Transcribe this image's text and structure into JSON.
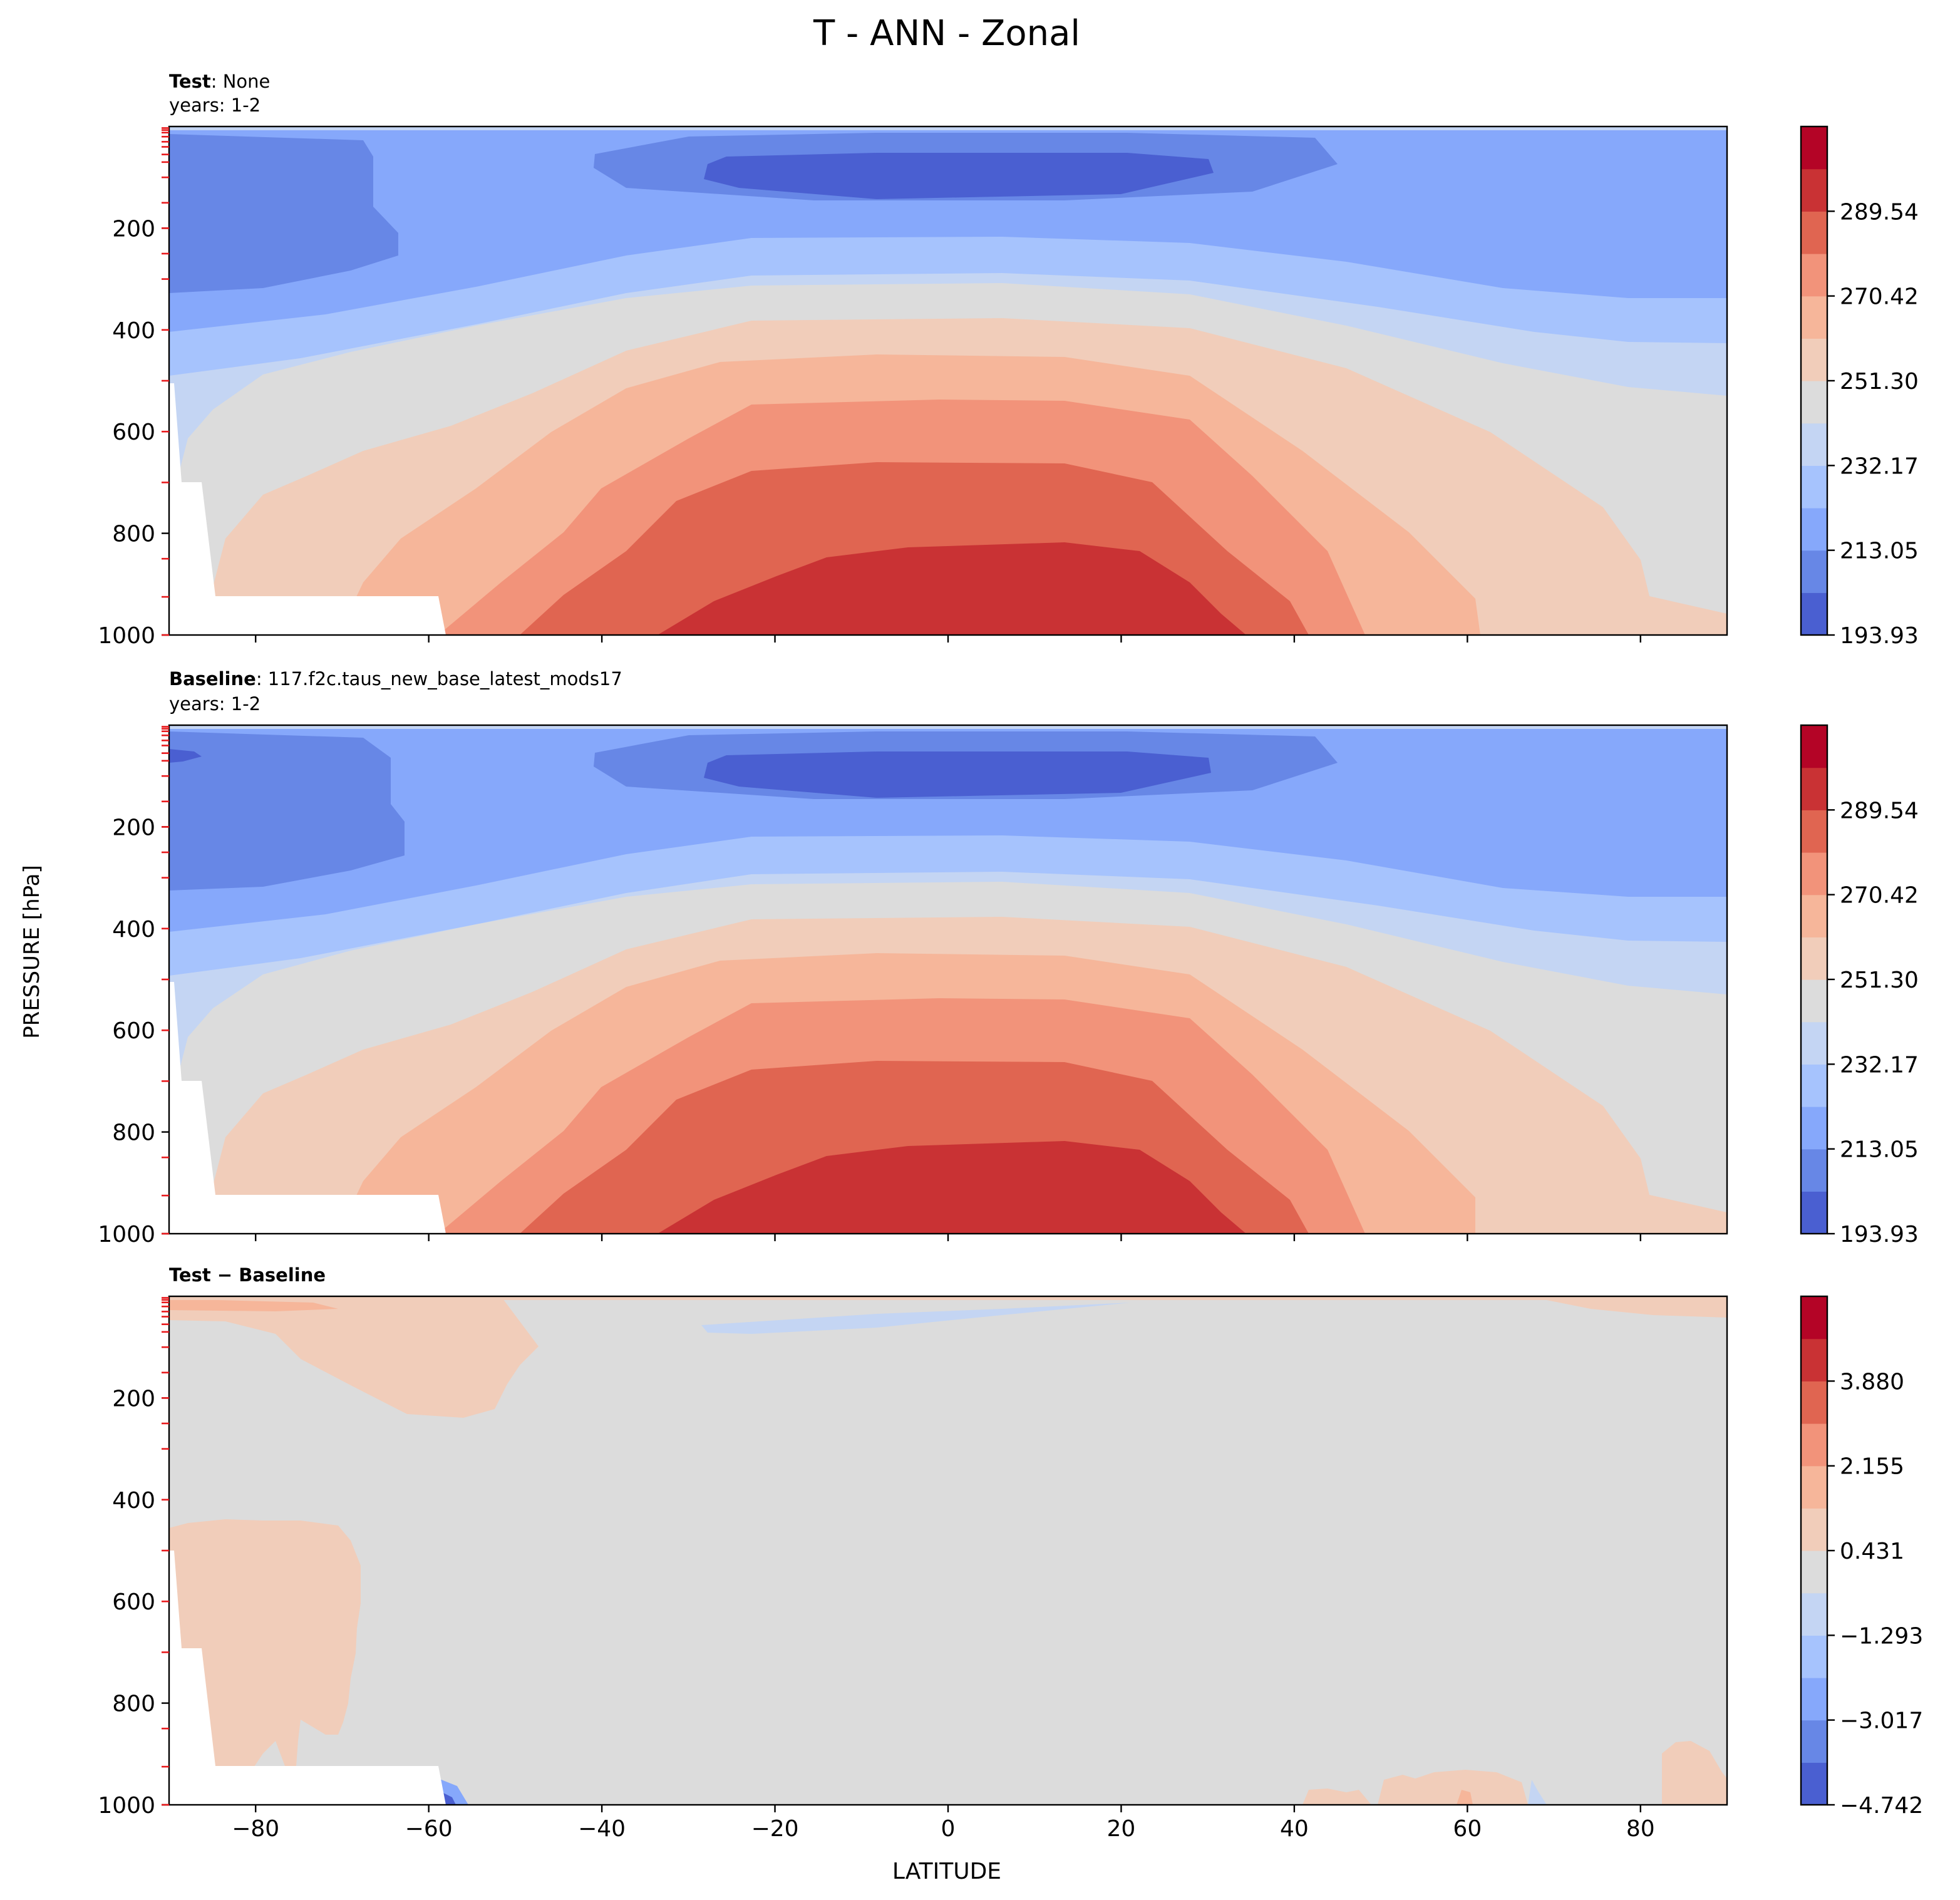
{
  "figure": {
    "title": "T - ANN - Zonal",
    "ylabel": "PRESSURE [hPa]",
    "xlabel": "LATITUDE"
  },
  "chart_data": [
    {
      "type": "heatmap",
      "panel": "test",
      "label_bold": "Test",
      "label_rest": ": None",
      "subtitle": "years: 1-2",
      "x": {
        "range": [
          -90,
          90
        ],
        "ticks": [
          -80,
          -60,
          -40,
          -20,
          0,
          20,
          40,
          60,
          80
        ],
        "tick_labels_shown": false
      },
      "y": {
        "range": [
          1000,
          0
        ],
        "ticks": [
          200,
          400,
          600,
          800,
          1000
        ],
        "tick_labels": [
          "200",
          "400",
          "600",
          "800",
          "1000"
        ]
      },
      "model_levels_hpa": [
        3,
        7,
        12,
        20,
        30,
        40,
        55,
        70,
        100,
        150,
        200,
        250,
        300,
        400,
        500,
        600,
        700,
        850,
        925,
        1000
      ],
      "colorbar": {
        "min": 193.93,
        "max": 308.66,
        "n_levels": 12,
        "tick_values": [
          193.93,
          213.05,
          232.17,
          251.3,
          270.42,
          289.54
        ],
        "tick_labels": [
          "193.93",
          "213.05",
          "232.17",
          "251.30",
          "270.42",
          "289.54"
        ]
      },
      "colors": [
        "#4a5fd1",
        "#6787e6",
        "#86a8fb",
        "#a6c3fd",
        "#c4d5f3",
        "#dcdcdc",
        "#f1cdba",
        "#f6b69a",
        "#f2937a",
        "#e06551",
        "#c93234",
        "#b40426"
      ]
    },
    {
      "type": "heatmap",
      "panel": "baseline",
      "label_bold": "Baseline",
      "label_rest": ": 117.f2c.taus_new_base_latest_mods17",
      "subtitle": "years: 1-2",
      "x": {
        "range": [
          -90,
          90
        ],
        "ticks": [
          -80,
          -60,
          -40,
          -20,
          0,
          20,
          40,
          60,
          80
        ],
        "tick_labels_shown": false
      },
      "y": {
        "range": [
          1000,
          0
        ],
        "ticks": [
          200,
          400,
          600,
          800,
          1000
        ],
        "tick_labels": [
          "200",
          "400",
          "600",
          "800",
          "1000"
        ]
      },
      "model_levels_hpa": [
        3,
        7,
        12,
        20,
        30,
        40,
        55,
        70,
        100,
        150,
        200,
        250,
        300,
        400,
        500,
        600,
        700,
        850,
        925,
        1000
      ],
      "colorbar": {
        "min": 193.93,
        "max": 308.66,
        "n_levels": 12,
        "tick_values": [
          193.93,
          213.05,
          232.17,
          251.3,
          270.42,
          289.54
        ],
        "tick_labels": [
          "193.93",
          "213.05",
          "232.17",
          "251.30",
          "270.42",
          "289.54"
        ]
      },
      "colors": [
        "#4a5fd1",
        "#6787e6",
        "#86a8fb",
        "#a6c3fd",
        "#c4d5f3",
        "#dcdcdc",
        "#f1cdba",
        "#f6b69a",
        "#f2937a",
        "#e06551",
        "#c93234",
        "#b40426"
      ]
    },
    {
      "type": "heatmap",
      "panel": "diff",
      "label_bold": "Test − Baseline",
      "label_rest": "",
      "subtitle": "",
      "x": {
        "range": [
          -90,
          90
        ],
        "ticks": [
          -80,
          -60,
          -40,
          -20,
          0,
          20,
          40,
          60,
          80
        ],
        "tick_labels": [
          "−80",
          "−60",
          "−40",
          "−20",
          "0",
          "20",
          "40",
          "60",
          "80"
        ]
      },
      "y": {
        "range": [
          1000,
          0
        ],
        "ticks": [
          200,
          400,
          600,
          800,
          1000
        ],
        "tick_labels": [
          "200",
          "400",
          "600",
          "800",
          "1000"
        ]
      },
      "model_levels_hpa": [
        3,
        7,
        12,
        20,
        30,
        40,
        55,
        70,
        100,
        150,
        200,
        250,
        300,
        400,
        500,
        600,
        700,
        850,
        925,
        1000
      ],
      "colorbar": {
        "min": -4.742,
        "max": 5.605,
        "n_levels": 12,
        "tick_values": [
          -4.742,
          -3.017,
          -1.293,
          0.431,
          2.155,
          3.88
        ],
        "tick_labels": [
          "−4.742",
          "−3.017",
          "−1.293",
          "0.431",
          "2.155",
          "3.880"
        ]
      },
      "colors": [
        "#4a5fd1",
        "#6787e6",
        "#86a8fb",
        "#a6c3fd",
        "#c4d5f3",
        "#dcdcdc",
        "#f1cdba",
        "#f6b69a",
        "#f2937a",
        "#e06551",
        "#c93234",
        "#b40426"
      ]
    }
  ]
}
